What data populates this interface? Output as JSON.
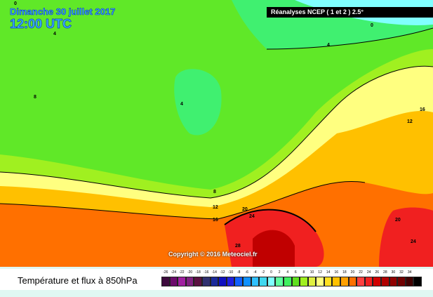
{
  "header": {
    "date": "Dimanche 30 juillet 2017",
    "time": "12:00 UTC",
    "source": "Réanalyses NCEP ( 1 et 2 ) 2.5°"
  },
  "copyright": "Copyright © 2016 Meteociel.fr",
  "legend": {
    "title": "Température et flux à 850hPa",
    "values": [
      "-26",
      "-24",
      "-22",
      "-20",
      "-18",
      "-16",
      "-14",
      "-12",
      "-10",
      "-8",
      "-6",
      "-4",
      "-2",
      "0",
      "2",
      "4",
      "6",
      "8",
      "10",
      "12",
      "14",
      "16",
      "18",
      "20",
      "22",
      "24",
      "26",
      "28",
      "30",
      "32",
      "34",
      ""
    ],
    "colors": [
      "#3d0a3d",
      "#6b0a6b",
      "#a020a0",
      "#802080",
      "#5a1040",
      "#303070",
      "#1a2a9a",
      "#1010c0",
      "#2020e0",
      "#1060ff",
      "#1090ff",
      "#30c0ff",
      "#40d8f0",
      "#80ffff",
      "#60ffa0",
      "#40f060",
      "#60e020",
      "#a0f020",
      "#e0f040",
      "#ffff80",
      "#ffe020",
      "#ffc000",
      "#ffa000",
      "#ff7000",
      "#ff4040",
      "#f02020",
      "#d00000",
      "#b00000",
      "#900000",
      "#700000",
      "#400000",
      "#000000"
    ]
  },
  "contour_labels": [
    "0",
    "4",
    "4",
    "8",
    "8",
    "12",
    "12",
    "16",
    "16",
    "20",
    "20",
    "24",
    "24",
    "28",
    "0",
    "4"
  ]
}
